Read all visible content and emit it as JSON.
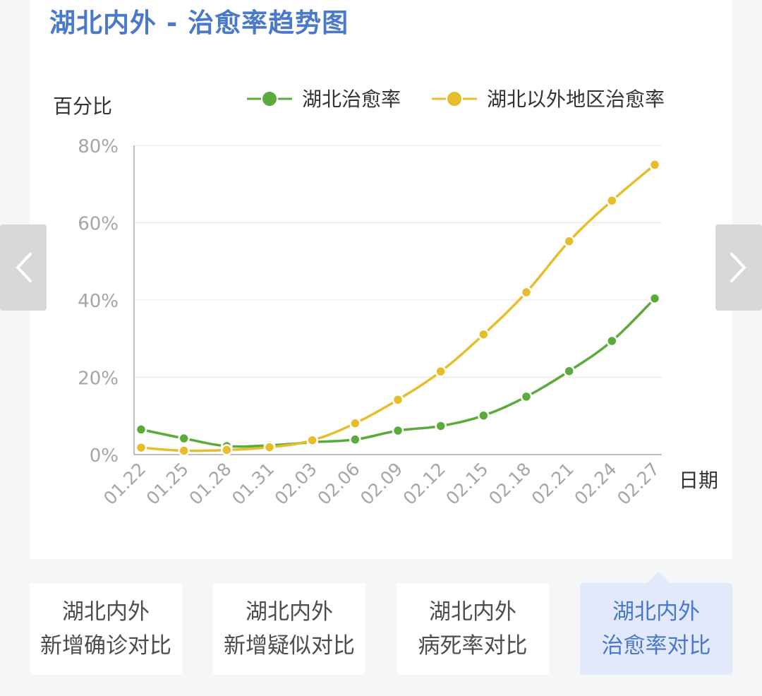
{
  "page": {
    "title": "湖北内外 - 治愈率趋势图"
  },
  "colors": {
    "accent": "#4a79cc",
    "hubei": "#5aab3c",
    "outside": "#e8bd2c",
    "active_tab_bg": "#e1e9fb"
  },
  "icons": {
    "prev": "chevron-left-icon",
    "next": "chevron-right-icon"
  },
  "chart_data": {
    "type": "line",
    "ylabel": "百分比",
    "xlabel": "日期",
    "ylim": [
      0,
      80
    ],
    "yticks": [
      "0%",
      "20%",
      "40%",
      "60%",
      "80%"
    ],
    "yticks_values": [
      0,
      20,
      40,
      60,
      80
    ],
    "categories": [
      "01.22",
      "01.25",
      "01.28",
      "01.31",
      "02.03",
      "02.06",
      "02.09",
      "02.12",
      "02.15",
      "02.18",
      "02.21",
      "02.24",
      "02.27"
    ],
    "legend_position": "top-right",
    "series": [
      {
        "name": "湖北治愈率",
        "color": "#5aab3c",
        "values": [
          6.5,
          4.2,
          2.2,
          2.4,
          3.2,
          3.9,
          6.2,
          7.4,
          10.1,
          15.0,
          21.6,
          29.4,
          40.4
        ]
      },
      {
        "name": "湖北以外地区治愈率",
        "color": "#e8bd2c",
        "values": [
          1.8,
          1.0,
          1.2,
          1.9,
          3.7,
          8.1,
          14.2,
          21.5,
          31.1,
          42.0,
          55.2,
          65.7,
          75.0
        ]
      }
    ]
  },
  "tabs": [
    {
      "line1": "湖北内外",
      "line2": "新增确诊对比"
    },
    {
      "line1": "湖北内外",
      "line2": "新增疑似对比"
    },
    {
      "line1": "湖北内外",
      "line2": "病死率对比"
    },
    {
      "line1": "湖北内外",
      "line2": "治愈率对比"
    }
  ]
}
